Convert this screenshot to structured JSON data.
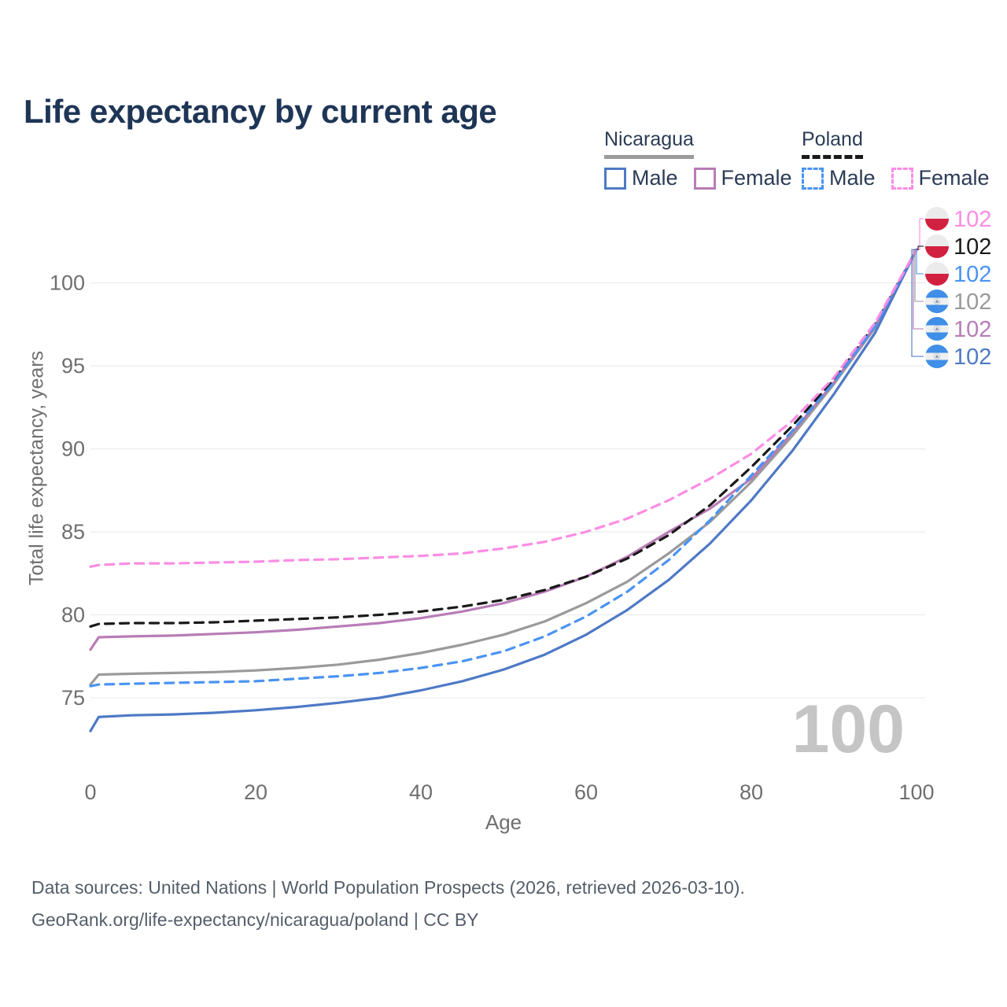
{
  "header": {
    "title": "Life expectancy by current age"
  },
  "legend": {
    "groups": [
      {
        "label": "Nicaragua",
        "underline_series": 3,
        "items": [
          {
            "label": "Male",
            "series": 5
          },
          {
            "label": "Female",
            "series": 4
          }
        ]
      },
      {
        "label": "Poland",
        "underline_series": 1,
        "items": [
          {
            "label": "Male",
            "series": 2
          },
          {
            "label": "Female",
            "series": 0
          }
        ]
      }
    ]
  },
  "watermark": "100",
  "footer": {
    "line1": "Data sources: United Nations | World Population Prospects (2026, retrieved 2026-03-10).",
    "line2": "GeoRank.org/life-expectancy/nicaragua/poland | CC BY"
  },
  "colors": {
    "title_text": "#1e3556",
    "legend_text": "#2b3c55",
    "axis_text": "#6f6f6f",
    "gridline": "#ececec",
    "watermark": "#c5c5c5",
    "poland_flag_white": "#ebebeb",
    "poland_flag_red": "#d22040",
    "nicaragua_flag_blue": "#3f8ee8",
    "nicaragua_flag_white": "#f0f0f0"
  },
  "chart_data": {
    "type": "line",
    "title": "Life expectancy by current age",
    "xlabel": "Age",
    "ylabel": "Total life expectancy, years",
    "xlim": [
      0,
      100
    ],
    "ylim": [
      72,
      103
    ],
    "x_ticks": [
      0,
      20,
      40,
      60,
      80,
      100
    ],
    "y_ticks": [
      75,
      80,
      85,
      90,
      95,
      100
    ],
    "grid": "horizontal",
    "legend_position": "top-right",
    "ages": [
      0,
      1,
      5,
      10,
      15,
      20,
      25,
      30,
      35,
      40,
      45,
      50,
      55,
      60,
      65,
      70,
      75,
      80,
      85,
      90,
      95,
      100
    ],
    "series": [
      {
        "id": "poland-female",
        "name": "Poland Female",
        "country": "Poland",
        "sex": "Female",
        "flag": "poland",
        "dash": true,
        "color": "#fb8ce4",
        "end_label": "102",
        "values": [
          82.9,
          83.0,
          83.1,
          83.1,
          83.15,
          83.2,
          83.3,
          83.35,
          83.45,
          83.55,
          83.7,
          84.0,
          84.4,
          85.0,
          85.8,
          86.9,
          88.2,
          89.7,
          91.7,
          94.3,
          97.6,
          102
        ]
      },
      {
        "id": "poland-both",
        "name": "Poland",
        "country": "Poland",
        "sex": "Both",
        "flag": "poland",
        "dash": true,
        "color": "#1a1a1a",
        "end_label": "102",
        "values": [
          79.3,
          79.45,
          79.5,
          79.5,
          79.55,
          79.65,
          79.75,
          79.85,
          80.0,
          80.2,
          80.5,
          80.9,
          81.5,
          82.3,
          83.4,
          84.8,
          86.6,
          88.9,
          91.4,
          94.15,
          97.5,
          102
        ]
      },
      {
        "id": "poland-male",
        "name": "Poland Male",
        "country": "Poland",
        "sex": "Male",
        "flag": "poland",
        "dash": true,
        "color": "#4a93f2",
        "end_label": "102",
        "values": [
          75.7,
          75.8,
          75.85,
          75.9,
          75.95,
          76.0,
          76.15,
          76.3,
          76.5,
          76.8,
          77.2,
          77.8,
          78.7,
          79.9,
          81.4,
          83.3,
          85.7,
          88.4,
          91.1,
          94.0,
          97.4,
          102
        ]
      },
      {
        "id": "nicaragua-both",
        "name": "Nicaragua",
        "country": "Nicaragua",
        "sex": "Both",
        "flag": "nicaragua",
        "dash": false,
        "color": "#9a9a9a",
        "end_label": "102",
        "values": [
          75.8,
          76.4,
          76.45,
          76.5,
          76.55,
          76.65,
          76.8,
          77.0,
          77.3,
          77.7,
          78.2,
          78.8,
          79.6,
          80.7,
          82.0,
          83.7,
          85.6,
          88.0,
          90.8,
          93.9,
          97.3,
          102
        ]
      },
      {
        "id": "nicaragua-female",
        "name": "Nicaragua Female",
        "country": "Nicaragua",
        "sex": "Female",
        "flag": "nicaragua",
        "dash": false,
        "color": "#b87cb6",
        "end_label": "102",
        "values": [
          77.9,
          78.65,
          78.7,
          78.75,
          78.85,
          78.95,
          79.1,
          79.3,
          79.5,
          79.8,
          80.2,
          80.7,
          81.4,
          82.3,
          83.5,
          85.0,
          86.4,
          88.2,
          91.0,
          94.0,
          97.4,
          102
        ]
      },
      {
        "id": "nicaragua-male",
        "name": "Nicaragua Male",
        "country": "Nicaragua",
        "sex": "Male",
        "flag": "nicaragua",
        "dash": false,
        "color": "#4e79c5",
        "end_label": "102",
        "values": [
          73.0,
          73.85,
          73.95,
          74.0,
          74.1,
          74.25,
          74.45,
          74.7,
          75.0,
          75.45,
          76.0,
          76.7,
          77.6,
          78.8,
          80.3,
          82.1,
          84.3,
          86.9,
          89.9,
          93.3,
          97.0,
          102
        ]
      }
    ]
  }
}
